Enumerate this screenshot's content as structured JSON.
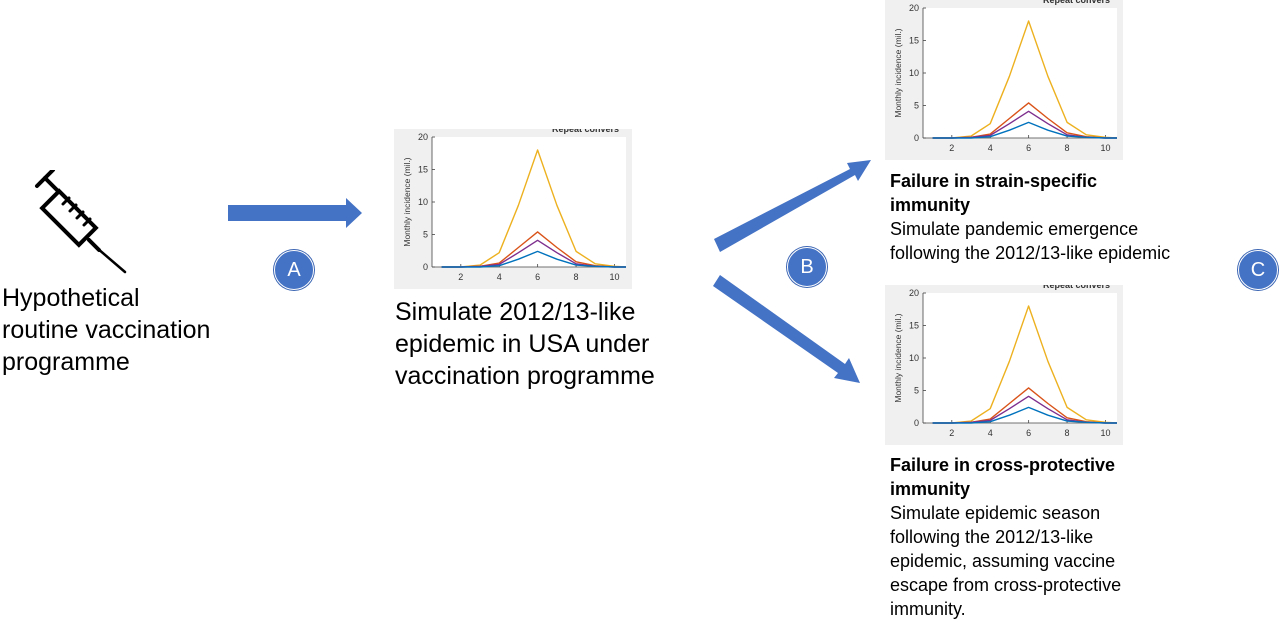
{
  "colors": {
    "arrow": "#4472c4",
    "label_circle": "#4472c4",
    "plot_bg": "#f0f0f0",
    "series": [
      "#edb120",
      "#d95319",
      "#7e2f8e",
      "#0072bd"
    ]
  },
  "icons": {
    "vaccine": "syringe-icon"
  },
  "left_caption": [
    "Hypothetical",
    "routine vaccination",
    "programme"
  ],
  "middle_caption": [
    "Simulate 2012/13-like",
    "epidemic in USA under",
    "vaccination programme"
  ],
  "step_labels": {
    "a": "A",
    "b": "B",
    "c": "C"
  },
  "captions": {
    "strain": {
      "title": [
        "Failure in strain-specific",
        "immunity"
      ],
      "body": [
        "Simulate pandemic emergence",
        "following the 2012/13-like epidemic"
      ]
    },
    "cross": {
      "title": [
        "Failure in cross-protective",
        "immunity"
      ],
      "body": [
        "Simulate epidemic season",
        "following the 2012/13-like",
        "epidemic, assuming vaccine",
        "escape from cross-protective",
        "immunity."
      ]
    }
  },
  "chart_data": {
    "type": "line",
    "ylabel": "Monthly incidence (mil.)",
    "legend_fragment": "Repeat convers",
    "xlim": [
      0.5,
      10.6
    ],
    "ylim": [
      0,
      20
    ],
    "xticks": [
      2,
      4,
      6,
      8,
      10
    ],
    "yticks": [
      0,
      5,
      10,
      15,
      20
    ],
    "x": [
      1,
      2,
      3,
      4,
      5,
      6,
      7,
      8,
      9,
      10,
      11
    ],
    "series": [
      {
        "values": [
          0,
          0,
          0.3,
          2.2,
          9.5,
          18,
          9.5,
          2.4,
          0.5,
          0.1,
          0
        ]
      },
      {
        "values": [
          0,
          0,
          0.1,
          0.6,
          3,
          5.4,
          3,
          0.8,
          0.2,
          0,
          0
        ]
      },
      {
        "values": [
          0,
          0,
          0.1,
          0.4,
          2.2,
          4.1,
          2.2,
          0.5,
          0.1,
          0,
          0
        ]
      },
      {
        "values": [
          0,
          0,
          0,
          0.2,
          1.2,
          2.4,
          1.2,
          0.3,
          0.1,
          0,
          0
        ]
      }
    ]
  }
}
